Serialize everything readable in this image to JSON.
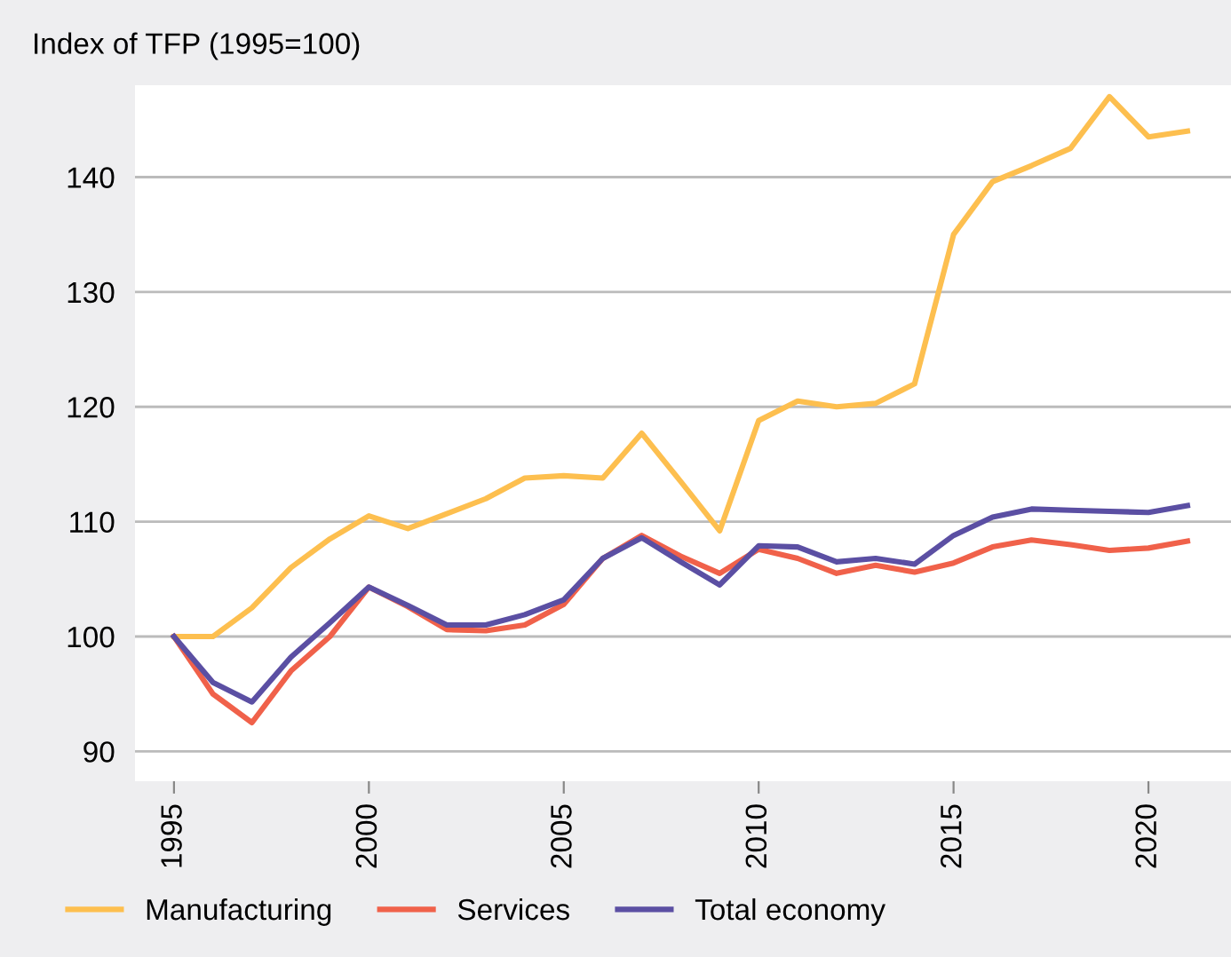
{
  "chart_data": {
    "type": "line",
    "ylabel": "Index of TFP (1995=100)",
    "x": [
      1995,
      1996,
      1997,
      1998,
      1999,
      2000,
      2001,
      2002,
      2003,
      2004,
      2005,
      2006,
      2007,
      2008,
      2009,
      2010,
      2011,
      2012,
      2013,
      2014,
      2015,
      2016,
      2017,
      2018,
      2019,
      2020,
      2021
    ],
    "series": [
      {
        "name": "Manufacturing",
        "color": "#fdbf4f",
        "values": [
          100,
          100,
          102.5,
          106,
          108.5,
          110.5,
          109.4,
          110.7,
          112,
          113.8,
          114,
          113.8,
          117.7,
          113.5,
          109.2,
          118.8,
          120.5,
          120,
          120.3,
          122,
          135,
          139.6,
          141,
          142.5,
          147,
          143.5,
          144
        ]
      },
      {
        "name": "Services",
        "color": "#f0614a",
        "values": [
          100,
          95,
          92.5,
          97,
          100,
          104.3,
          102.6,
          100.6,
          100.5,
          101,
          102.8,
          106.8,
          108.8,
          107,
          105.5,
          107.6,
          106.8,
          105.5,
          106.2,
          105.6,
          106.4,
          107.8,
          108.4,
          108,
          107.5,
          107.7,
          108.3
        ]
      },
      {
        "name": "Total economy",
        "color": "#5b4fa3",
        "values": [
          100,
          96,
          94.3,
          98.2,
          101.2,
          104.3,
          102.7,
          101,
          101,
          101.9,
          103.2,
          106.8,
          108.6,
          106.5,
          104.5,
          107.9,
          107.8,
          106.5,
          106.8,
          106.3,
          108.8,
          110.4,
          111.1,
          111,
          110.9,
          110.8,
          111.4
        ]
      }
    ],
    "xlim": [
      1994,
      2022.3
    ],
    "ylim": [
      87.4,
      148
    ],
    "xticks": [
      1995,
      2000,
      2005,
      2010,
      2015,
      2020
    ],
    "yticks": [
      90,
      100,
      110,
      120,
      130,
      140
    ],
    "grid": "y",
    "legend": "bottom",
    "marker": "none",
    "line_style": "solid"
  }
}
